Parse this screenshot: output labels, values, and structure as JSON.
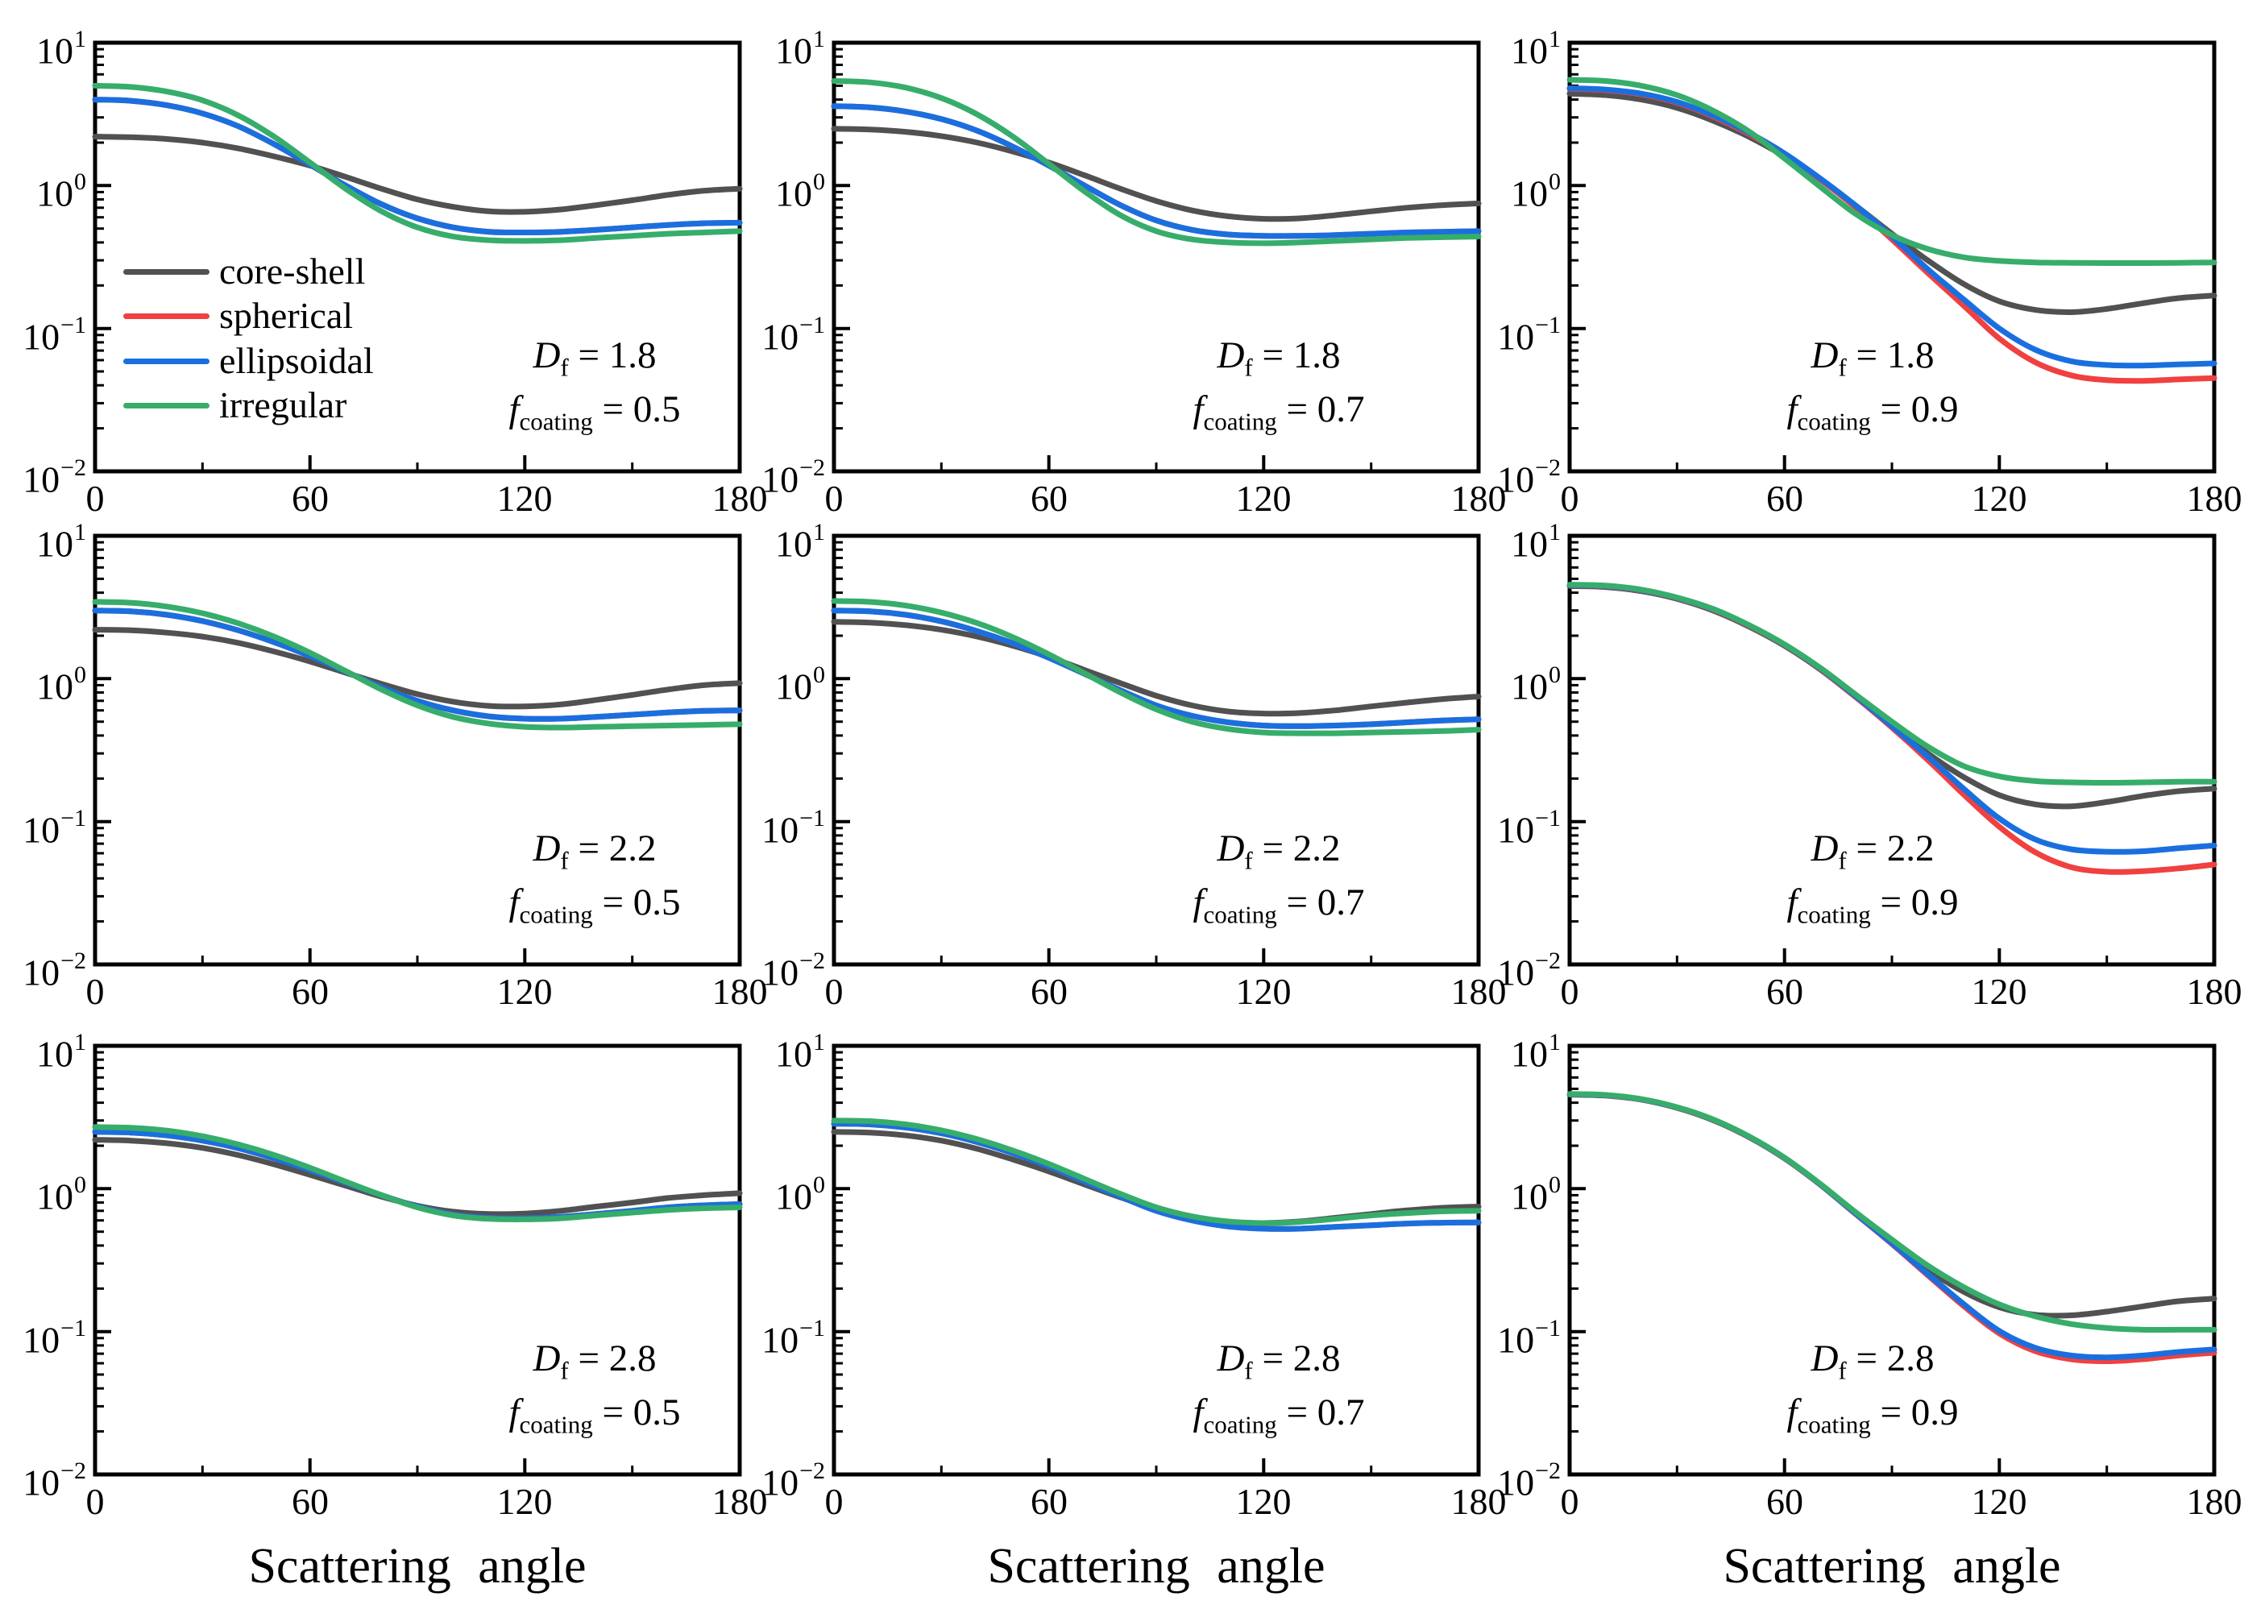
{
  "figure": {
    "background": "#ffffff",
    "text_color": "#000000",
    "frame_color": "#000000"
  },
  "legend": {
    "entries": [
      {
        "label": "core-shell",
        "color": "#515151"
      },
      {
        "label": "spherical",
        "color": "#F14040"
      },
      {
        "label": "ellipsoidal",
        "color": "#1A6FDF"
      },
      {
        "label": "irregular",
        "color": "#37AD6B"
      }
    ]
  },
  "chart_data": {
    "type": "line",
    "layout": "3x3-grid",
    "xlabel": "Scattering angle",
    "x_ticks": [
      0,
      60,
      120,
      180
    ],
    "x_tick_labels": [
      "0",
      "60",
      "120",
      "180"
    ],
    "x_minor_ticks": [
      30,
      90,
      150
    ],
    "xlim": [
      0,
      180
    ],
    "y_scale": "log",
    "ylim": [
      0.01,
      10
    ],
    "y_tick_exponents": [
      "1",
      "0",
      "−1",
      "−2"
    ],
    "legend_position": "inside top-left panel, lower left",
    "series_order": [
      "core-shell",
      "spherical",
      "ellipsoidal",
      "irregular"
    ],
    "series_colors": {
      "core-shell": "#515151",
      "spherical": "#F14040",
      "ellipsoidal": "#1A6FDF",
      "irregular": "#37AD6B"
    },
    "x": [
      0,
      10,
      20,
      30,
      40,
      50,
      60,
      70,
      80,
      90,
      100,
      110,
      120,
      130,
      140,
      150,
      160,
      170,
      180
    ],
    "annotation_format": {
      "line1_var": "D",
      "line1_sub": "f",
      "line2_var": "f",
      "line2_sub": "coating"
    },
    "panels": [
      {
        "row": 0,
        "col": 0,
        "Df": "1.8",
        "f_coating": "0.5",
        "show_legend": true,
        "series": {
          "core-shell": [
            2.2,
            2.18,
            2.12,
            2.0,
            1.82,
            1.6,
            1.38,
            1.15,
            0.95,
            0.8,
            0.71,
            0.66,
            0.655,
            0.68,
            0.73,
            0.79,
            0.86,
            0.92,
            0.95
          ],
          "spherical": [
            4.0,
            3.92,
            3.65,
            3.2,
            2.6,
            1.95,
            1.4,
            1.0,
            0.74,
            0.59,
            0.51,
            0.475,
            0.47,
            0.475,
            0.49,
            0.51,
            0.53,
            0.545,
            0.55
          ],
          "ellipsoidal": [
            4.0,
            3.92,
            3.65,
            3.2,
            2.6,
            1.95,
            1.4,
            1.0,
            0.74,
            0.59,
            0.51,
            0.475,
            0.47,
            0.475,
            0.49,
            0.51,
            0.53,
            0.545,
            0.55
          ],
          "irregular": [
            5.0,
            4.9,
            4.55,
            3.95,
            3.1,
            2.2,
            1.45,
            0.95,
            0.66,
            0.51,
            0.44,
            0.415,
            0.41,
            0.415,
            0.43,
            0.445,
            0.46,
            0.47,
            0.48
          ]
        }
      },
      {
        "row": 0,
        "col": 1,
        "Df": "1.8",
        "f_coating": "0.7",
        "show_legend": false,
        "series": {
          "core-shell": [
            2.5,
            2.47,
            2.38,
            2.22,
            2.0,
            1.73,
            1.45,
            1.18,
            0.95,
            0.78,
            0.67,
            0.61,
            0.585,
            0.59,
            0.62,
            0.66,
            0.7,
            0.73,
            0.75
          ],
          "spherical": [
            3.6,
            3.53,
            3.3,
            2.92,
            2.42,
            1.87,
            1.38,
            1.0,
            0.73,
            0.57,
            0.49,
            0.455,
            0.445,
            0.445,
            0.45,
            0.46,
            0.47,
            0.475,
            0.48
          ],
          "ellipsoidal": [
            3.6,
            3.53,
            3.3,
            2.92,
            2.42,
            1.87,
            1.38,
            1.0,
            0.73,
            0.57,
            0.49,
            0.455,
            0.445,
            0.445,
            0.45,
            0.46,
            0.47,
            0.475,
            0.48
          ],
          "irregular": [
            5.4,
            5.28,
            4.85,
            4.1,
            3.15,
            2.2,
            1.42,
            0.91,
            0.62,
            0.48,
            0.42,
            0.4,
            0.395,
            0.4,
            0.41,
            0.42,
            0.43,
            0.435,
            0.44
          ]
        }
      },
      {
        "row": 0,
        "col": 2,
        "Df": "1.8",
        "f_coating": "0.9",
        "show_legend": false,
        "series": {
          "core-shell": [
            4.4,
            4.3,
            4.0,
            3.5,
            2.85,
            2.2,
            1.6,
            1.1,
            0.72,
            0.46,
            0.3,
            0.205,
            0.155,
            0.135,
            0.13,
            0.137,
            0.15,
            0.163,
            0.17
          ],
          "spherical": [
            4.75,
            4.65,
            4.35,
            3.8,
            3.05,
            2.3,
            1.65,
            1.1,
            0.7,
            0.42,
            0.245,
            0.145,
            0.085,
            0.058,
            0.047,
            0.0435,
            0.043,
            0.044,
            0.045
          ],
          "ellipsoidal": [
            4.8,
            4.7,
            4.4,
            3.85,
            3.1,
            2.35,
            1.68,
            1.12,
            0.72,
            0.44,
            0.26,
            0.16,
            0.1,
            0.071,
            0.059,
            0.0555,
            0.055,
            0.056,
            0.057
          ],
          "irregular": [
            5.5,
            5.4,
            5.0,
            4.3,
            3.35,
            2.4,
            1.55,
            0.98,
            0.63,
            0.45,
            0.36,
            0.315,
            0.297,
            0.29,
            0.288,
            0.287,
            0.287,
            0.288,
            0.29
          ]
        }
      },
      {
        "row": 1,
        "col": 0,
        "Df": "2.2",
        "f_coating": "0.5",
        "show_legend": false,
        "series": {
          "core-shell": [
            2.2,
            2.18,
            2.1,
            1.97,
            1.78,
            1.55,
            1.32,
            1.1,
            0.92,
            0.78,
            0.69,
            0.645,
            0.64,
            0.66,
            0.71,
            0.77,
            0.84,
            0.9,
            0.93
          ],
          "spherical": [
            3.0,
            2.96,
            2.8,
            2.53,
            2.18,
            1.8,
            1.44,
            1.12,
            0.87,
            0.7,
            0.6,
            0.545,
            0.525,
            0.525,
            0.54,
            0.56,
            0.58,
            0.595,
            0.6
          ],
          "ellipsoidal": [
            3.0,
            2.96,
            2.8,
            2.53,
            2.18,
            1.8,
            1.44,
            1.12,
            0.87,
            0.7,
            0.6,
            0.545,
            0.525,
            0.525,
            0.54,
            0.56,
            0.58,
            0.595,
            0.6
          ],
          "irregular": [
            3.45,
            3.4,
            3.2,
            2.87,
            2.44,
            1.97,
            1.52,
            1.13,
            0.84,
            0.65,
            0.54,
            0.485,
            0.46,
            0.455,
            0.46,
            0.465,
            0.47,
            0.475,
            0.48
          ]
        }
      },
      {
        "row": 1,
        "col": 1,
        "Df": "2.2",
        "f_coating": "0.7",
        "show_legend": false,
        "series": {
          "core-shell": [
            2.5,
            2.47,
            2.37,
            2.2,
            1.97,
            1.7,
            1.42,
            1.15,
            0.93,
            0.76,
            0.65,
            0.59,
            0.57,
            0.575,
            0.6,
            0.64,
            0.68,
            0.72,
            0.75
          ],
          "spherical": [
            3.0,
            2.96,
            2.8,
            2.52,
            2.15,
            1.77,
            1.4,
            1.08,
            0.83,
            0.65,
            0.55,
            0.495,
            0.47,
            0.465,
            0.47,
            0.48,
            0.495,
            0.51,
            0.52
          ],
          "ellipsoidal": [
            3.0,
            2.96,
            2.8,
            2.52,
            2.15,
            1.77,
            1.4,
            1.08,
            0.83,
            0.65,
            0.55,
            0.495,
            0.47,
            0.465,
            0.47,
            0.48,
            0.495,
            0.51,
            0.52
          ],
          "irregular": [
            3.5,
            3.45,
            3.25,
            2.9,
            2.45,
            1.95,
            1.48,
            1.09,
            0.8,
            0.61,
            0.5,
            0.445,
            0.42,
            0.415,
            0.415,
            0.42,
            0.425,
            0.43,
            0.44
          ]
        }
      },
      {
        "row": 1,
        "col": 2,
        "Df": "2.2",
        "f_coating": "0.9",
        "show_legend": false,
        "series": {
          "core-shell": [
            4.45,
            4.38,
            4.1,
            3.62,
            3.0,
            2.32,
            1.7,
            1.16,
            0.74,
            0.47,
            0.3,
            0.205,
            0.153,
            0.132,
            0.128,
            0.137,
            0.151,
            0.163,
            0.17
          ],
          "spherical": [
            4.5,
            4.43,
            4.15,
            3.66,
            3.04,
            2.35,
            1.72,
            1.17,
            0.74,
            0.455,
            0.27,
            0.155,
            0.092,
            0.061,
            0.048,
            0.0445,
            0.045,
            0.047,
            0.05
          ],
          "ellipsoidal": [
            4.52,
            4.45,
            4.17,
            3.68,
            3.06,
            2.37,
            1.73,
            1.18,
            0.75,
            0.465,
            0.285,
            0.17,
            0.105,
            0.075,
            0.064,
            0.0615,
            0.062,
            0.065,
            0.068
          ],
          "irregular": [
            4.55,
            4.48,
            4.2,
            3.7,
            3.08,
            2.38,
            1.74,
            1.19,
            0.77,
            0.5,
            0.335,
            0.245,
            0.207,
            0.192,
            0.188,
            0.187,
            0.188,
            0.19,
            0.19
          ]
        }
      },
      {
        "row": 2,
        "col": 0,
        "Df": "2.8",
        "f_coating": "0.5",
        "show_legend": false,
        "series": {
          "core-shell": [
            2.2,
            2.17,
            2.08,
            1.93,
            1.72,
            1.48,
            1.25,
            1.05,
            0.88,
            0.76,
            0.69,
            0.665,
            0.67,
            0.7,
            0.75,
            0.8,
            0.86,
            0.9,
            0.93
          ],
          "spherical": [
            2.5,
            2.47,
            2.36,
            2.17,
            1.92,
            1.63,
            1.35,
            1.1,
            0.9,
            0.75,
            0.66,
            0.625,
            0.62,
            0.635,
            0.665,
            0.7,
            0.74,
            0.765,
            0.78
          ],
          "ellipsoidal": [
            2.5,
            2.47,
            2.36,
            2.17,
            1.92,
            1.63,
            1.35,
            1.1,
            0.9,
            0.75,
            0.66,
            0.625,
            0.62,
            0.635,
            0.665,
            0.7,
            0.74,
            0.765,
            0.78
          ],
          "irregular": [
            2.7,
            2.67,
            2.55,
            2.33,
            2.04,
            1.72,
            1.4,
            1.12,
            0.9,
            0.74,
            0.65,
            0.615,
            0.61,
            0.62,
            0.65,
            0.68,
            0.71,
            0.73,
            0.74
          ]
        }
      },
      {
        "row": 2,
        "col": 1,
        "Df": "2.8",
        "f_coating": "0.7",
        "show_legend": false,
        "series": {
          "core-shell": [
            2.5,
            2.47,
            2.36,
            2.17,
            1.9,
            1.6,
            1.32,
            1.07,
            0.87,
            0.72,
            0.63,
            0.585,
            0.575,
            0.59,
            0.625,
            0.665,
            0.705,
            0.735,
            0.75
          ],
          "spherical": [
            2.85,
            2.82,
            2.68,
            2.44,
            2.12,
            1.77,
            1.43,
            1.12,
            0.88,
            0.7,
            0.6,
            0.545,
            0.525,
            0.525,
            0.54,
            0.555,
            0.57,
            0.578,
            0.58
          ],
          "ellipsoidal": [
            2.85,
            2.82,
            2.68,
            2.44,
            2.12,
            1.77,
            1.43,
            1.12,
            0.88,
            0.7,
            0.6,
            0.545,
            0.525,
            0.525,
            0.54,
            0.555,
            0.57,
            0.578,
            0.58
          ],
          "irregular": [
            3.0,
            2.97,
            2.82,
            2.56,
            2.22,
            1.85,
            1.49,
            1.17,
            0.92,
            0.74,
            0.64,
            0.59,
            0.575,
            0.585,
            0.615,
            0.65,
            0.675,
            0.695,
            0.7
          ]
        }
      },
      {
        "row": 2,
        "col": 2,
        "Df": "2.8",
        "f_coating": "0.9",
        "show_legend": false,
        "series": {
          "core-shell": [
            4.55,
            4.48,
            4.2,
            3.68,
            3.02,
            2.3,
            1.63,
            1.07,
            0.67,
            0.425,
            0.272,
            0.19,
            0.148,
            0.131,
            0.13,
            0.138,
            0.15,
            0.163,
            0.17
          ],
          "spherical": [
            4.57,
            4.5,
            4.21,
            3.7,
            3.04,
            2.31,
            1.63,
            1.065,
            0.66,
            0.41,
            0.248,
            0.151,
            0.097,
            0.073,
            0.064,
            0.062,
            0.064,
            0.068,
            0.071
          ],
          "ellipsoidal": [
            4.58,
            4.51,
            4.22,
            3.71,
            3.05,
            2.32,
            1.64,
            1.07,
            0.665,
            0.415,
            0.253,
            0.156,
            0.101,
            0.077,
            0.068,
            0.066,
            0.068,
            0.072,
            0.075
          ],
          "irregular": [
            4.6,
            4.53,
            4.24,
            3.72,
            3.06,
            2.33,
            1.65,
            1.08,
            0.68,
            0.44,
            0.29,
            0.205,
            0.155,
            0.128,
            0.113,
            0.106,
            0.103,
            0.103,
            0.103
          ]
        }
      }
    ]
  }
}
